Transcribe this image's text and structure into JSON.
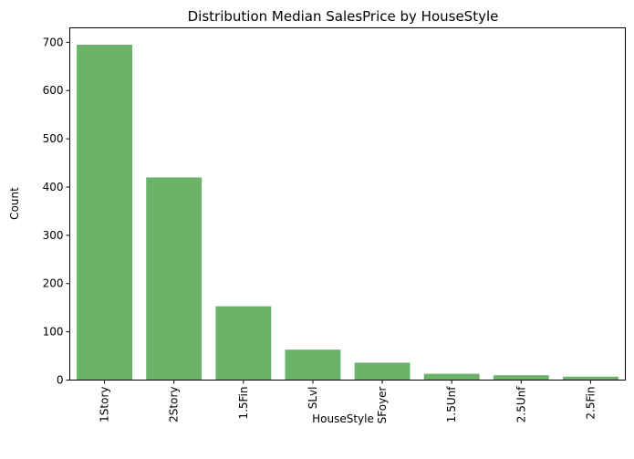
{
  "chart_data": {
    "type": "bar",
    "title": "Distribution Median SalesPrice by HouseStyle",
    "xlabel": "HouseStyle",
    "ylabel": "Count",
    "categories": [
      "1Story",
      "2Story",
      "1.5Fin",
      "SLvl",
      "SFoyer",
      "1.5Unf",
      "2.5Unf",
      "2.5Fin"
    ],
    "values": [
      695,
      420,
      153,
      63,
      36,
      13,
      10,
      7
    ],
    "ylim": [
      0,
      730
    ],
    "yticks": [
      0,
      100,
      200,
      300,
      400,
      500,
      600,
      700
    ],
    "grid": false,
    "bar_color": "#6ab368",
    "x_tick_rotation": "vertical"
  }
}
